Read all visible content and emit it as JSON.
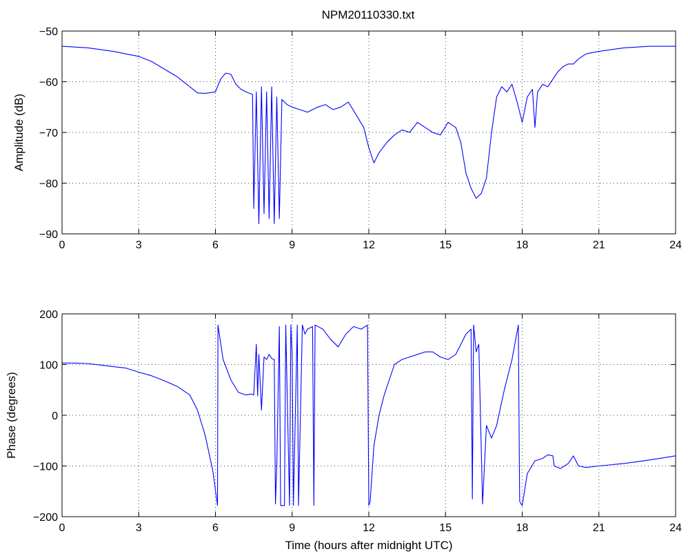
{
  "figure": {
    "title": "NPM20110330.txt"
  },
  "chart_data": [
    {
      "type": "line",
      "ylabel": "Amplitude (dB)",
      "xlabel": "",
      "xlim": [
        0,
        24
      ],
      "ylim": [
        -90,
        -50
      ],
      "xticks": [
        0,
        3,
        6,
        9,
        12,
        15,
        18,
        21,
        24
      ],
      "yticks": [
        -90,
        -80,
        -70,
        -60,
        -50
      ],
      "xtick_labels": [
        "0",
        "3",
        "6",
        "9",
        "12",
        "15",
        "18",
        "21",
        "24"
      ],
      "ytick_labels": [
        "−90",
        "−80",
        "−70",
        "−60",
        "−50"
      ],
      "grid": true,
      "color": "#0000ff",
      "series": [
        {
          "x": [
            0,
            1,
            2,
            3,
            3.5,
            4,
            4.5,
            5,
            5.3,
            5.6,
            6.0,
            6.2,
            6.4,
            6.6,
            6.8,
            7.0,
            7.2,
            7.45,
            7.5,
            7.6,
            7.7,
            7.8,
            7.9,
            8.0,
            8.1,
            8.2,
            8.3,
            8.4,
            8.5,
            8.6,
            8.8,
            9.0,
            9.3,
            9.6,
            10.0,
            10.3,
            10.6,
            10.9,
            11.2,
            11.5,
            11.8,
            12.0,
            12.2,
            12.4,
            12.7,
            13.0,
            13.3,
            13.6,
            13.9,
            14.2,
            14.5,
            14.8,
            15.1,
            15.4,
            15.6,
            15.8,
            16.0,
            16.2,
            16.4,
            16.6,
            16.8,
            17.0,
            17.2,
            17.4,
            17.6,
            17.8,
            18.0,
            18.2,
            18.4,
            18.5,
            18.6,
            18.8,
            19.0,
            19.2,
            19.4,
            19.6,
            19.8,
            20.0,
            20.2,
            20.5,
            21.0,
            22.0,
            23.0,
            24.0
          ],
          "y": [
            -53,
            -53.3,
            -54,
            -55,
            -56,
            -57.5,
            -59,
            -61,
            -62.2,
            -62.3,
            -62,
            -59.5,
            -58.3,
            -58.5,
            -60.5,
            -61.5,
            -62,
            -62.5,
            -85,
            -62,
            -88,
            -61,
            -86,
            -62,
            -87,
            -61,
            -88,
            -63,
            -87,
            -63.5,
            -64.5,
            -65,
            -65.5,
            -66,
            -65,
            -64.5,
            -65.5,
            -65,
            -64,
            -66.5,
            -69,
            -73,
            -76,
            -74,
            -72,
            -70.5,
            -69.5,
            -70,
            -68,
            -69,
            -70,
            -70.5,
            -68,
            -69,
            -72,
            -78,
            -81,
            -83,
            -82,
            -79,
            -70,
            -63,
            -61,
            -62,
            -60.5,
            -64,
            -68,
            -63,
            -61.5,
            -69,
            -62,
            -60.5,
            -61,
            -59.5,
            -58,
            -57,
            -56.5,
            -56.5,
            -55.5,
            -54.5,
            -54,
            -53.3,
            -53,
            -53
          ]
        }
      ]
    },
    {
      "type": "line",
      "ylabel": "Phase (degrees)",
      "xlabel": "Time (hours after midnight UTC)",
      "xlim": [
        0,
        24
      ],
      "ylim": [
        -200,
        200
      ],
      "xticks": [
        0,
        3,
        6,
        9,
        12,
        15,
        18,
        21,
        24
      ],
      "yticks": [
        -200,
        -100,
        0,
        100,
        200
      ],
      "xtick_labels": [
        "0",
        "3",
        "6",
        "9",
        "12",
        "15",
        "18",
        "21",
        "24"
      ],
      "ytick_labels": [
        "−200",
        "−100",
        "0",
        "100",
        "200"
      ],
      "grid": true,
      "color": "#0000ff",
      "series": [
        {
          "x": [
            0,
            0.5,
            1,
            1.5,
            2,
            2.5,
            3,
            3.5,
            4,
            4.5,
            5,
            5.3,
            5.6,
            5.9,
            6.08,
            6.1,
            6.3,
            6.6,
            6.9,
            7.2,
            7.4,
            7.5,
            7.6,
            7.65,
            7.7,
            7.8,
            7.9,
            8.0,
            8.1,
            8.2,
            8.3,
            8.35,
            8.4,
            8.5,
            8.55,
            8.7,
            8.75,
            8.9,
            8.95,
            9.0,
            9.05,
            9.2,
            9.25,
            9.4,
            9.5,
            9.6,
            9.8,
            9.85,
            9.9,
            10.2,
            10.5,
            10.8,
            11.1,
            11.4,
            11.7,
            11.95,
            12.0,
            12.05,
            12.2,
            12.4,
            12.6,
            12.8,
            13.0,
            13.3,
            13.6,
            13.9,
            14.2,
            14.5,
            14.8,
            15.1,
            15.4,
            15.6,
            15.8,
            16.0,
            16.05,
            16.1,
            16.2,
            16.3,
            16.45,
            16.6,
            16.8,
            17.0,
            17.3,
            17.6,
            17.85,
            17.9,
            18.0,
            18.2,
            18.5,
            18.8,
            19.0,
            19.2,
            19.25,
            19.5,
            19.8,
            20.0,
            20.2,
            20.5,
            21.0,
            22.0,
            23.0,
            24.0
          ],
          "y": [
            103,
            103,
            102,
            99,
            96,
            93,
            85,
            78,
            68,
            57,
            40,
            10,
            -40,
            -110,
            -178,
            178,
            110,
            70,
            45,
            40,
            42,
            40,
            140,
            38,
            120,
            10,
            115,
            110,
            120,
            112,
            110,
            -175,
            -100,
            175,
            -178,
            -178,
            178,
            -178,
            178,
            120,
            -178,
            178,
            -178,
            178,
            160,
            170,
            175,
            -178,
            178,
            170,
            150,
            135,
            160,
            175,
            170,
            178,
            -178,
            -170,
            -60,
            0,
            40,
            70,
            100,
            110,
            115,
            120,
            125,
            125,
            115,
            110,
            120,
            140,
            160,
            170,
            -165,
            178,
            125,
            140,
            -175,
            -20,
            -45,
            -20,
            50,
            110,
            178,
            -170,
            -178,
            -115,
            -90,
            -85,
            -78,
            -80,
            -100,
            -105,
            -95,
            -80,
            -100,
            -103,
            -100,
            -95,
            -88,
            -80
          ]
        }
      ]
    }
  ]
}
